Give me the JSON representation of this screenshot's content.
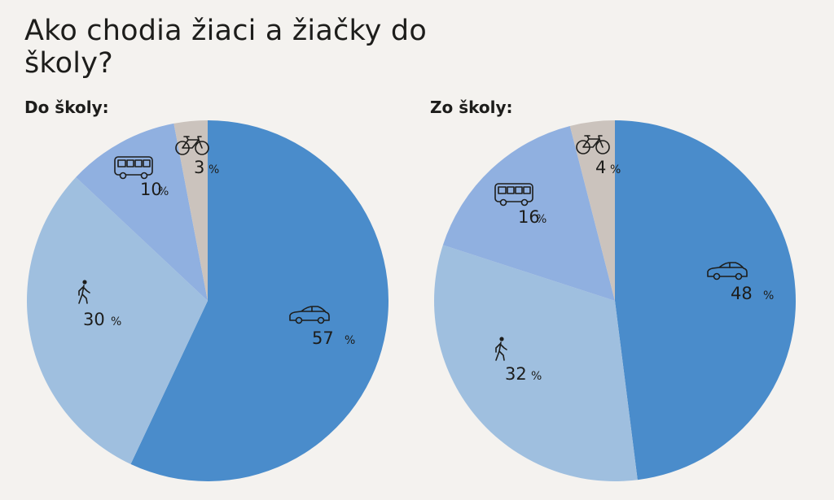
{
  "title": "Ako chodia žiaci a žiačky do školy?",
  "colors": {
    "auto": "#4a8ccb",
    "pesi": "#9fbfdf",
    "bus": "#90b0e0",
    "bicykel": "#cbc3bd",
    "background": "#f4f2ef"
  },
  "chart_data": [
    {
      "type": "pie",
      "title": "Do školy:",
      "slices": [
        {
          "icon": "car-icon",
          "value": 57,
          "label": "57",
          "unit": "%",
          "color": "#4a8ccb"
        },
        {
          "icon": "walking-person-icon",
          "value": 30,
          "label": "30",
          "unit": "%",
          "color": "#9fbfdf"
        },
        {
          "icon": "bus-icon",
          "value": 10,
          "label": "10",
          "unit": "%",
          "color": "#90b0e0"
        },
        {
          "icon": "bicycle-icon",
          "value": 3,
          "label": "3",
          "unit": "%",
          "color": "#cbc3bd"
        }
      ]
    },
    {
      "type": "pie",
      "title": "Zo školy:",
      "slices": [
        {
          "icon": "car-icon",
          "value": 48,
          "label": "48",
          "unit": "%",
          "color": "#4a8ccb"
        },
        {
          "icon": "walking-person-icon",
          "value": 32,
          "label": "32",
          "unit": "%",
          "color": "#9fbfdf"
        },
        {
          "icon": "bus-icon",
          "value": 16,
          "label": "16",
          "unit": "%",
          "color": "#90b0e0"
        },
        {
          "icon": "bicycle-icon",
          "value": 4,
          "label": "4",
          "unit": "%",
          "color": "#cbc3bd"
        }
      ]
    }
  ]
}
